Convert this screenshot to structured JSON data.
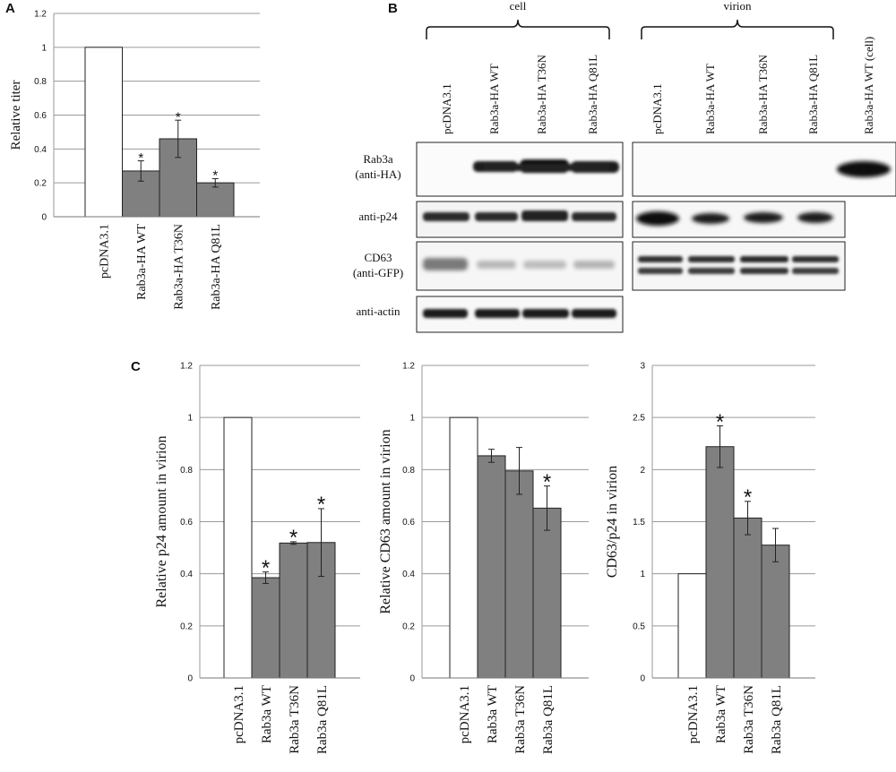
{
  "panels": {
    "a": "A",
    "b": "B",
    "c": "C"
  },
  "blot": {
    "group_cell": "cell",
    "group_virion": "virion",
    "lanes_cell": [
      "pcDNA3.1",
      "Rab3a-HA WT",
      "Rab3a-HA T36N",
      "Rab3a-HA Q81L"
    ],
    "lanes_virion": [
      "pcDNA3.1",
      "Rab3a-HA WT",
      "Rab3a-HA T36N",
      "Rab3a-HA Q81L",
      "Rab3a-HA WT (cell)"
    ],
    "rows": [
      {
        "label": [
          "Rab3a",
          "(anti-HA)"
        ]
      },
      {
        "label": [
          "anti-p24"
        ]
      },
      {
        "label": [
          "CD63",
          "(anti-GFP)"
        ]
      },
      {
        "label": [
          "anti-actin"
        ]
      }
    ]
  },
  "chart_data": [
    {
      "id": "A",
      "type": "bar",
      "categories": [
        "pcDNA3.1",
        "Rab3a-HA WT",
        "Rab3a-HA T36N",
        "Rab3a-HA Q81L"
      ],
      "values": [
        1.0,
        0.27,
        0.46,
        0.2
      ],
      "errors": [
        0,
        0.06,
        0.11,
        0.025
      ],
      "significance": [
        "",
        "*",
        "*",
        "*"
      ],
      "ylabel": "Relative titer",
      "ylim": [
        0,
        1.2
      ],
      "yticks": [
        "0",
        "0.2",
        "0.4",
        "0.6",
        "0.8",
        "1",
        "1.2"
      ],
      "grid": true,
      "colors": [
        "#ffffff",
        "#808080",
        "#808080",
        "#808080"
      ]
    },
    {
      "id": "C1",
      "type": "bar",
      "categories": [
        "pcDNA3.1",
        "Rab3a WT",
        "Rab3a T36N",
        "Rab3a Q81L"
      ],
      "values": [
        1.0,
        0.385,
        0.518,
        0.52
      ],
      "errors": [
        0,
        0.022,
        0.005,
        0.13
      ],
      "significance": [
        "",
        "*",
        "*",
        "*"
      ],
      "ylabel": "Relative p24 amount in virion",
      "ylim": [
        0,
        1.2
      ],
      "yticks": [
        "0",
        "0.2",
        "0.4",
        "0.6",
        "0.8",
        "1",
        "1.2"
      ],
      "grid": true,
      "colors": [
        "#ffffff",
        "#808080",
        "#808080",
        "#808080"
      ]
    },
    {
      "id": "C2",
      "type": "bar",
      "categories": [
        "pcDNA3.1",
        "Rab3a WT",
        "Rab3a T36N",
        "Rab3a Q81L"
      ],
      "values": [
        1.0,
        0.853,
        0.795,
        0.652
      ],
      "errors": [
        0,
        0.025,
        0.09,
        0.085
      ],
      "significance": [
        "",
        "",
        "",
        "*"
      ],
      "ylabel": "Relative CD63 amount in virion",
      "ylim": [
        0,
        1.2
      ],
      "yticks": [
        "0",
        "0.2",
        "0.4",
        "0.6",
        "0.8",
        "1",
        "1.2"
      ],
      "grid": true,
      "colors": [
        "#ffffff",
        "#808080",
        "#808080",
        "#808080"
      ]
    },
    {
      "id": "C3",
      "type": "bar",
      "categories": [
        "pcDNA3.1",
        "Rab3a WT",
        "Rab3a T36N",
        "Rab3a Q81L"
      ],
      "values": [
        1.0,
        2.22,
        1.535,
        1.275
      ],
      "errors": [
        0,
        0.2,
        0.16,
        0.16
      ],
      "significance": [
        "",
        "*",
        "*",
        ""
      ],
      "ylabel": "CD63/p24 in virion",
      "ylim": [
        0,
        3
      ],
      "yticks": [
        "0",
        "0.5",
        "1",
        "1.5",
        "2",
        "2.5",
        "3"
      ],
      "grid": true,
      "colors": [
        "#ffffff",
        "#808080",
        "#808080",
        "#808080"
      ]
    }
  ]
}
